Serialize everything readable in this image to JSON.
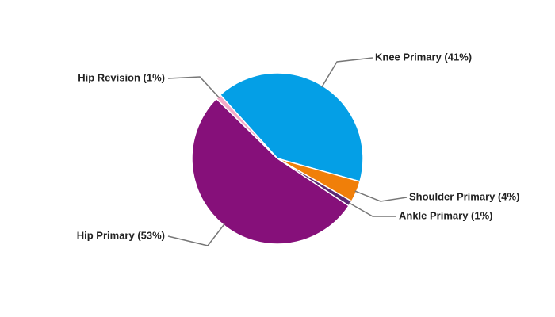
{
  "chart_data": {
    "type": "pie",
    "values": [
      41,
      4,
      1,
      53,
      1
    ],
    "value_labels": [
      "Knee Primary (41%)",
      "Shoulder Primary (4%)",
      "Ankle Primary (1%)",
      "Hip Primary (53%)",
      "Hip Revision (1%)"
    ],
    "colors": [
      "#049fe6",
      "#f07f09",
      "#5b2a73",
      "#86107a",
      "#f5a9c8"
    ]
  }
}
